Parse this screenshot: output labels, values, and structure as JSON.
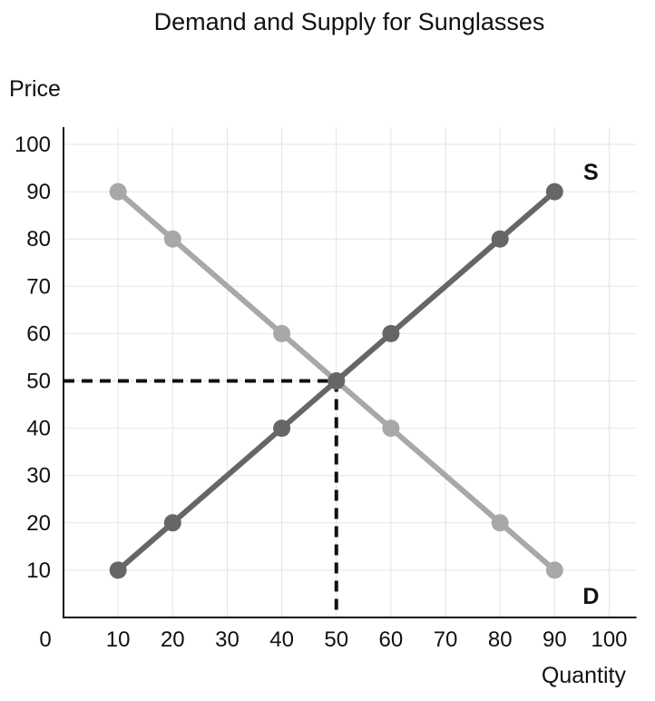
{
  "chart_data": {
    "type": "line",
    "title": "Demand and Supply for Sunglasses",
    "xlabel": "Quantity",
    "ylabel": "Price",
    "xlim": [
      0,
      105
    ],
    "ylim": [
      0,
      105
    ],
    "x_ticks": [
      "0",
      "10",
      "20",
      "30",
      "40",
      "50",
      "60",
      "70",
      "80",
      "90",
      "100"
    ],
    "y_ticks": [
      "10",
      "20",
      "30",
      "40",
      "50",
      "60",
      "70",
      "80",
      "90",
      "100"
    ],
    "grid": true,
    "series": [
      {
        "name": "D",
        "color": "#a8a8a8",
        "points": [
          [
            10,
            90
          ],
          [
            20,
            80
          ],
          [
            40,
            60
          ],
          [
            50,
            50
          ],
          [
            60,
            40
          ],
          [
            80,
            20
          ],
          [
            90,
            10
          ]
        ]
      },
      {
        "name": "S",
        "color": "#666666",
        "points": [
          [
            10,
            10
          ],
          [
            20,
            20
          ],
          [
            40,
            40
          ],
          [
            50,
            50
          ],
          [
            60,
            60
          ],
          [
            80,
            80
          ],
          [
            90,
            90
          ]
        ]
      }
    ],
    "equilibrium": {
      "quantity": 50,
      "price": 50,
      "line_style": "dashed"
    }
  },
  "colors": {
    "grid": "#e4e4e4",
    "axis": "#111111",
    "demand": "#a8a8a8",
    "supply": "#666666",
    "equilibrium_guides": "#111111"
  }
}
